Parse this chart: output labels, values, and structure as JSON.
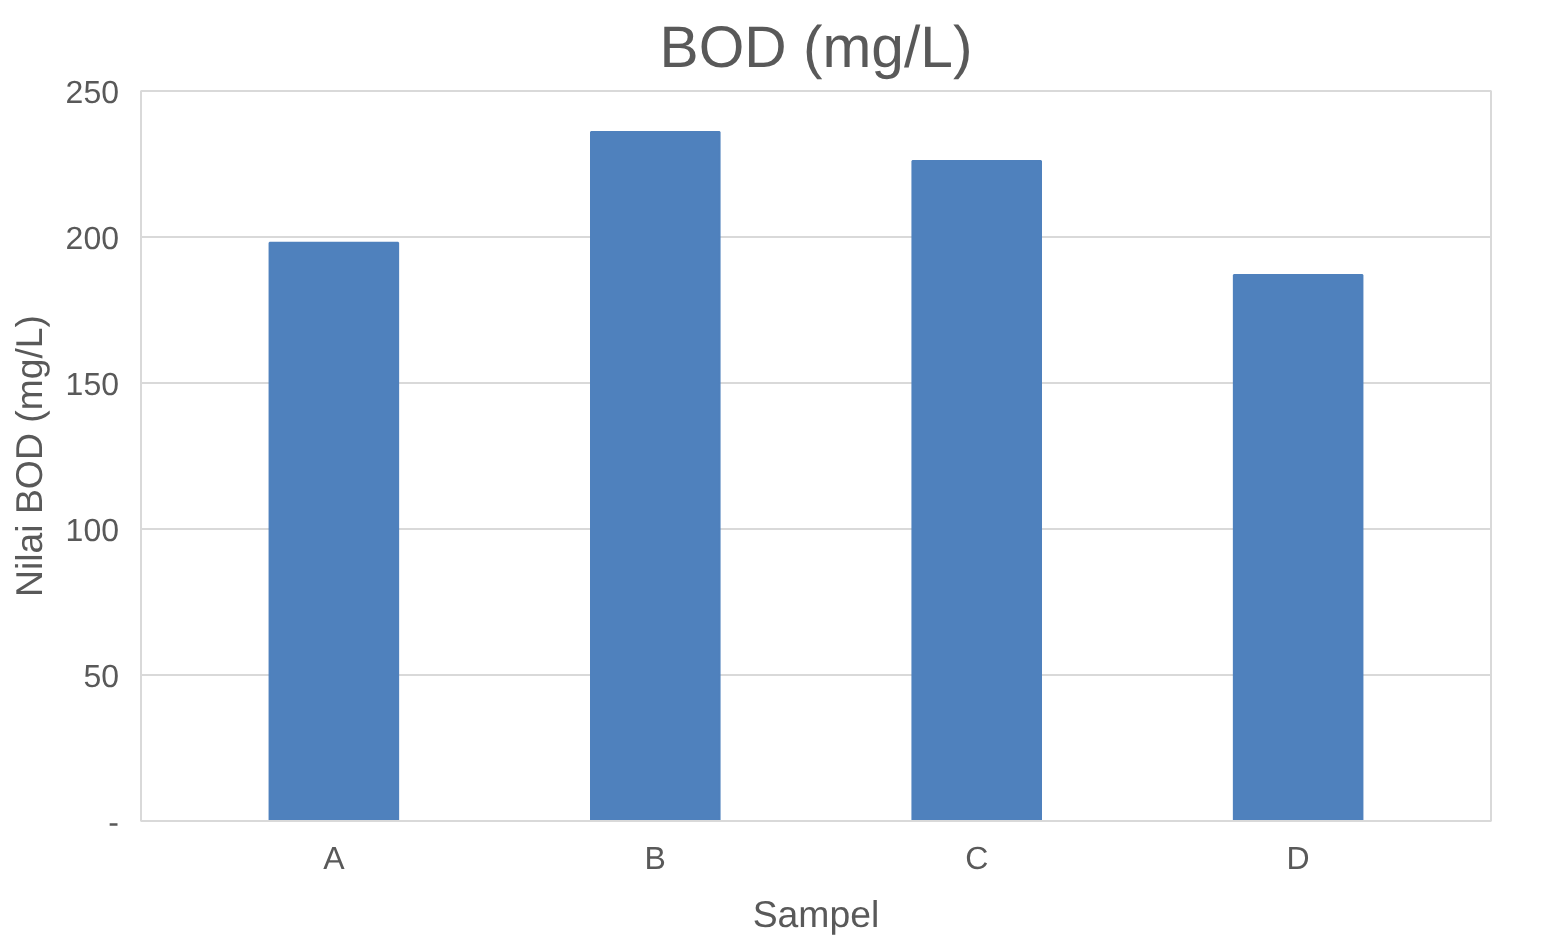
{
  "chart_data": {
    "type": "bar",
    "title": "BOD (mg/L)",
    "xlabel": "Sampel",
    "ylabel": "Nilai BOD (mg/L)",
    "categories": [
      "A",
      "B",
      "C",
      "D"
    ],
    "values": [
      198,
      236,
      226,
      187
    ],
    "color": "#4f81bd",
    "ylim": [
      0,
      250
    ],
    "yticks": [
      {
        "value": 0,
        "label": "-"
      },
      50,
      100,
      150,
      200,
      250
    ],
    "grid": "y"
  }
}
